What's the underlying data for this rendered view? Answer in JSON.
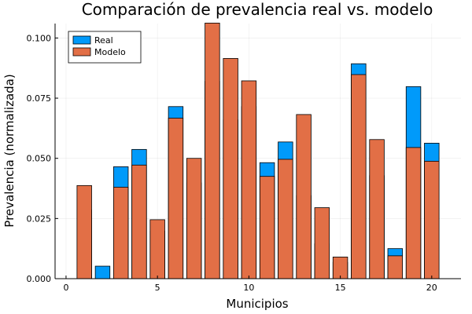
{
  "chart_data": {
    "type": "bar",
    "title": "Comparación de prevalencia real vs. modelo",
    "xlabel": "Municipios",
    "ylabel": "Prevalencia (normalizada)",
    "xlim": [
      -0.6,
      21.6
    ],
    "ylim": [
      0,
      0.106
    ],
    "grid": true,
    "legend_position": "top-left",
    "x": [
      1,
      2,
      3,
      4,
      5,
      6,
      7,
      8,
      9,
      10,
      11,
      12,
      13,
      14,
      15,
      16,
      17,
      18,
      19,
      20
    ],
    "x_ticks": [
      0,
      5,
      10,
      15,
      20
    ],
    "x_tick_labels": [
      "0",
      "5",
      "10",
      "15",
      "20"
    ],
    "y_ticks": [
      0,
      0.025,
      0.05,
      0.075,
      0.1
    ],
    "y_tick_labels": [
      "0.000",
      "0.025",
      "0.050",
      "0.075",
      "0.100"
    ],
    "series": [
      {
        "name": "Real",
        "color": "#009AFA",
        "values": [
          0.0285,
          0.0052,
          0.0465,
          0.0537,
          0.0198,
          0.0715,
          0.0398,
          0.082,
          0.066,
          0.0715,
          0.0482,
          0.0568,
          0.0345,
          0.0145,
          0.0068,
          0.0893,
          0.0428,
          0.0125,
          0.0798,
          0.0563
        ]
      },
      {
        "name": "Modelo",
        "color": "#E26F46",
        "values": [
          0.0387,
          0.0,
          0.038,
          0.0472,
          0.0245,
          0.0667,
          0.05,
          0.1062,
          0.0915,
          0.0822,
          0.0425,
          0.0496,
          0.0682,
          0.0295,
          0.009,
          0.0848,
          0.0578,
          0.0095,
          0.0545,
          0.0488
        ]
      }
    ]
  }
}
